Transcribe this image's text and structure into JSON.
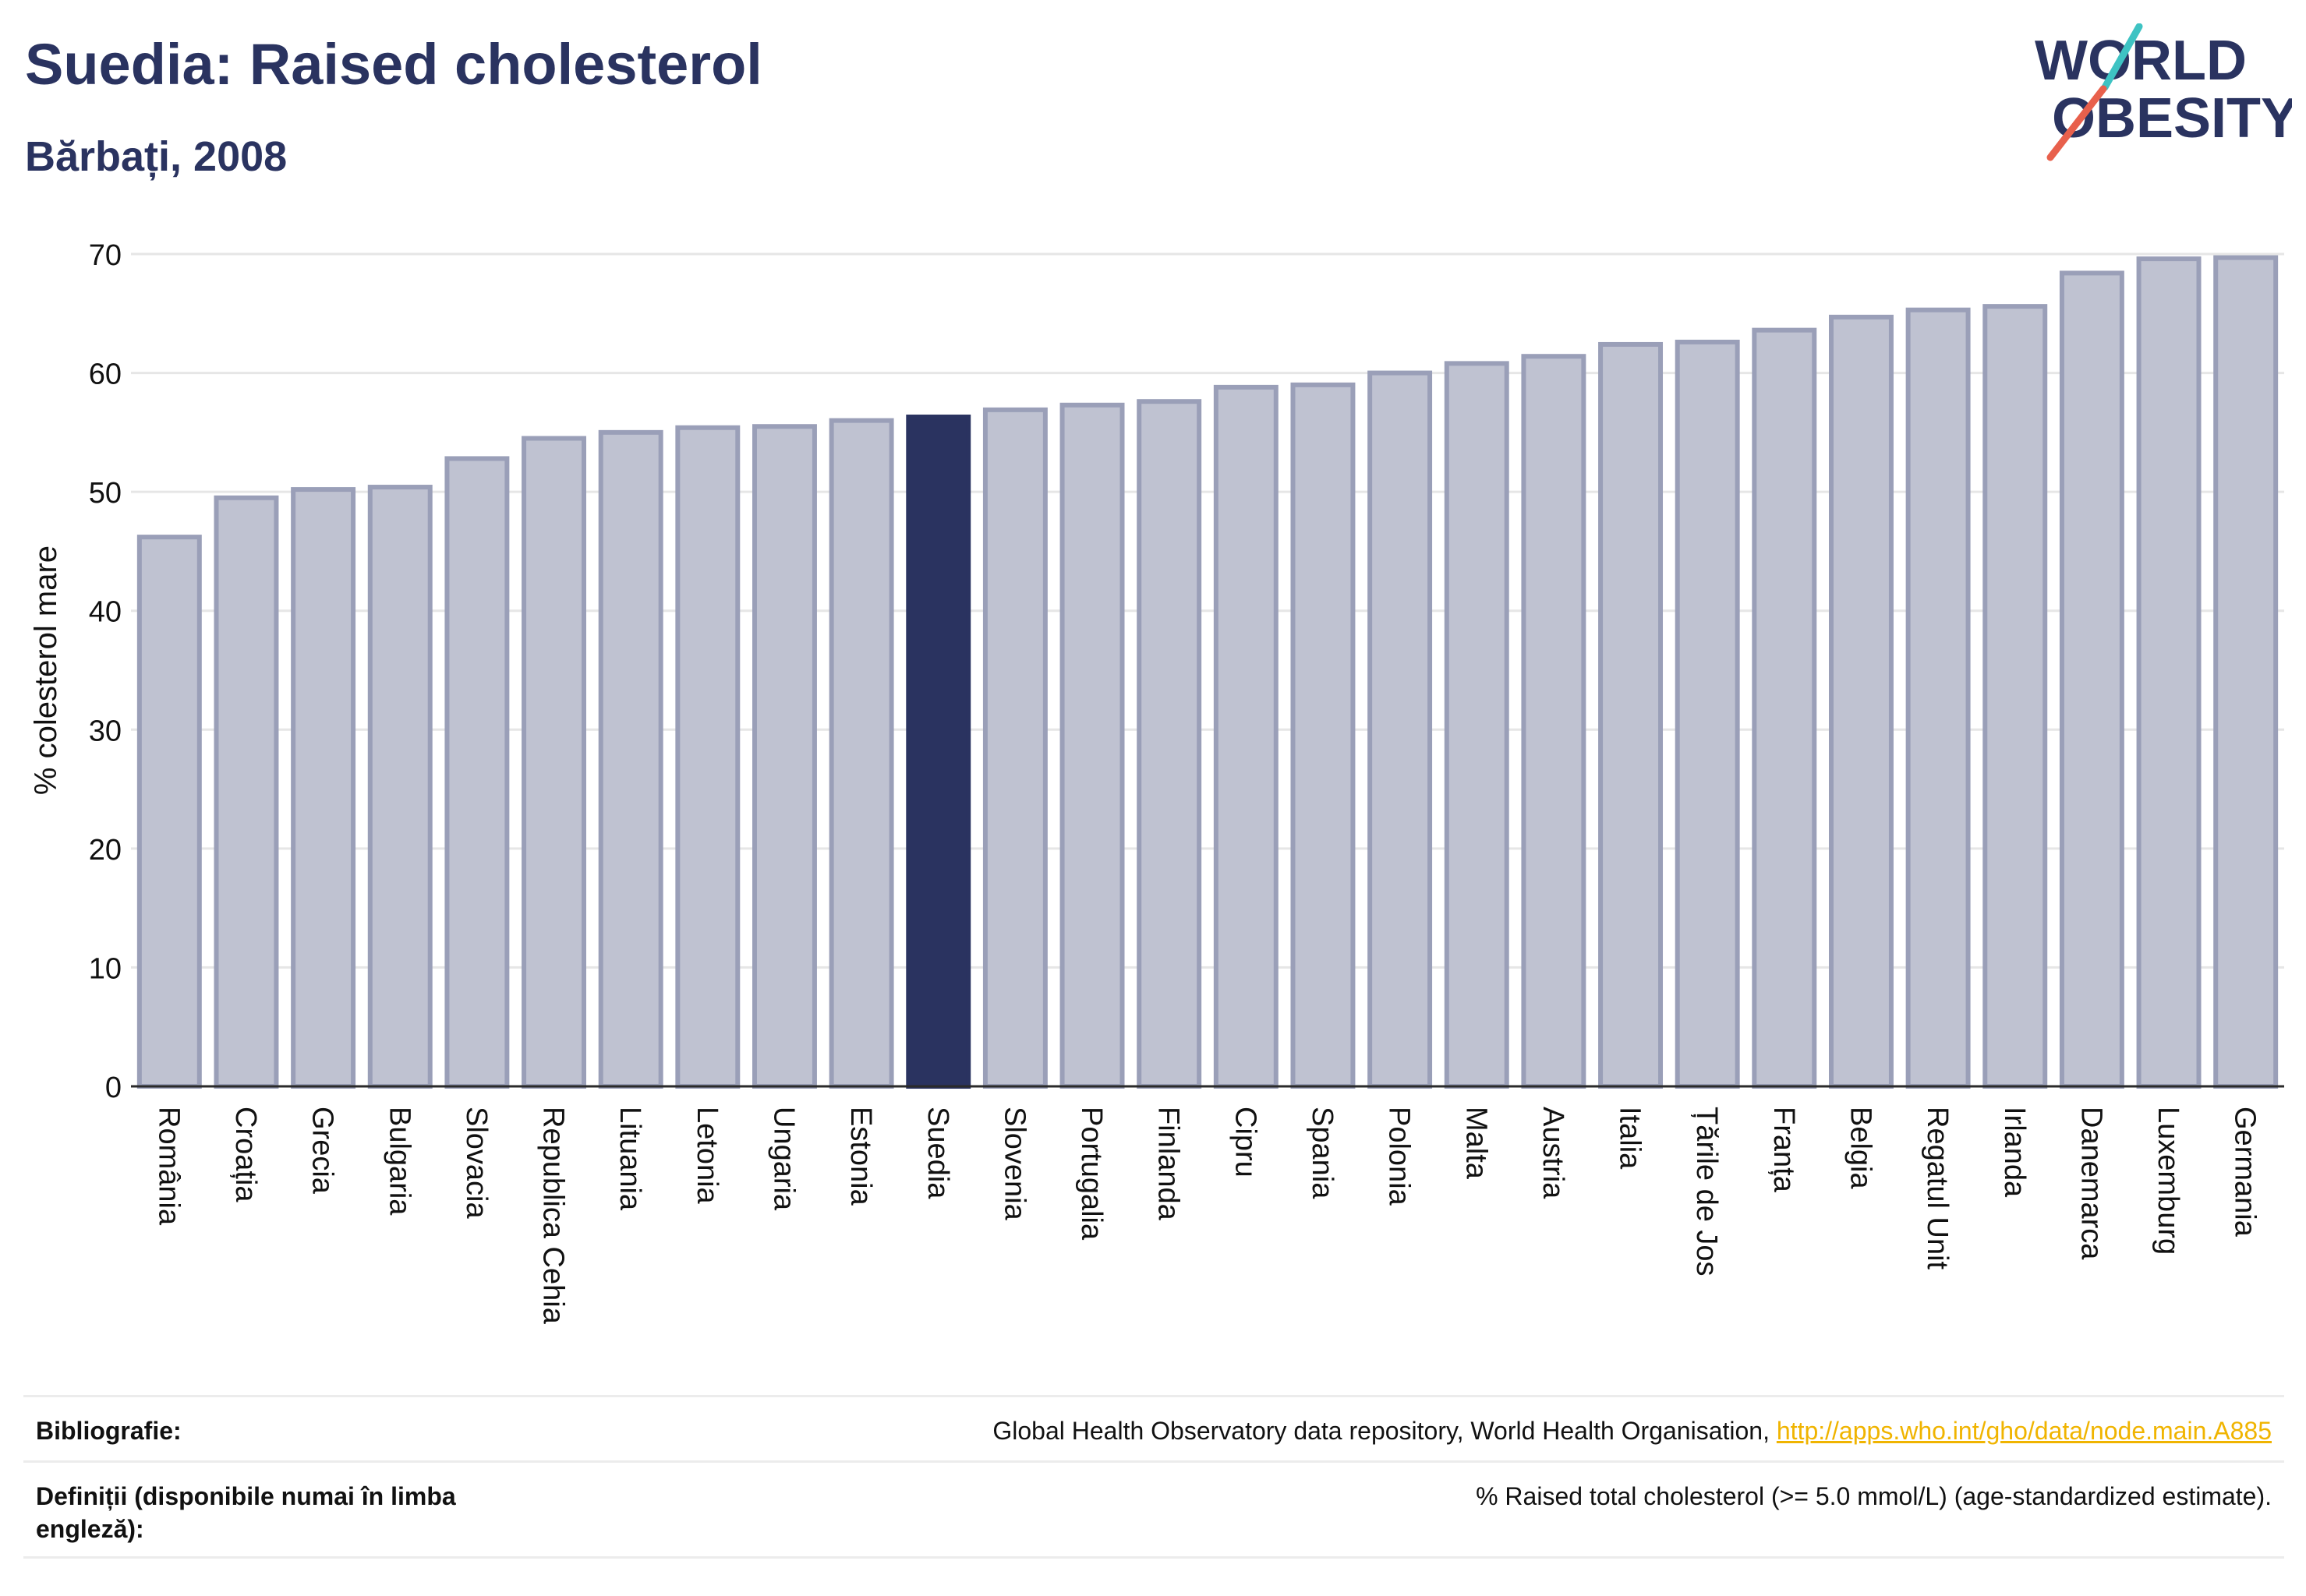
{
  "header": {
    "title": "Suedia: Raised cholesterol",
    "subtitle": "Bărbați, 2008"
  },
  "logo": {
    "line1": "WORLD",
    "line2": "OBESITY",
    "accent_teal": "#3ec3c3",
    "accent_red": "#e8604c"
  },
  "colors": {
    "bar_default": "#bfc2d1",
    "bar_border": "#9a9fb8",
    "bar_highlight": "#2a3360",
    "text_dark": "#2a3360"
  },
  "chart_data": {
    "type": "bar",
    "ylabel": "% colesterol mare",
    "ylim": [
      0,
      70
    ],
    "yticks": [
      0,
      10,
      20,
      30,
      40,
      50,
      60,
      70
    ],
    "grid": true,
    "highlight": "Suedia",
    "categories": [
      "România",
      "Croația",
      "Grecia",
      "Bulgaria",
      "Slovacia",
      "Republica Cehia",
      "Lituania",
      "Letonia",
      "Ungaria",
      "Estonia",
      "Suedia",
      "Slovenia",
      "Portugalia",
      "Finlanda",
      "Cipru",
      "Spania",
      "Polonia",
      "Malta",
      "Austria",
      "Italia",
      "Țările de Jos",
      "Franța",
      "Belgia",
      "Regatul Unit",
      "Irlanda",
      "Danemarca",
      "Luxemburg",
      "Germania"
    ],
    "values": [
      46.2,
      49.5,
      50.2,
      50.4,
      52.8,
      54.5,
      55.0,
      55.4,
      55.5,
      56.0,
      56.3,
      56.9,
      57.3,
      57.6,
      58.8,
      59.0,
      60.0,
      60.8,
      61.4,
      62.4,
      62.6,
      63.6,
      64.7,
      65.3,
      65.6,
      68.4,
      69.6,
      69.7
    ]
  },
  "footer": {
    "bibliography_label": "Bibliografie:",
    "bibliography_text": "Global Health Observatory data repository, World Health Organisation, ",
    "bibliography_link": "http://apps.who.int/gho/data/node.main.A885",
    "definitions_label": "Definiții (disponibile numai în limba engleză):",
    "definitions_text": "% Raised total cholesterol (>= 5.0 mmol/L) (age-standardized estimate)."
  }
}
